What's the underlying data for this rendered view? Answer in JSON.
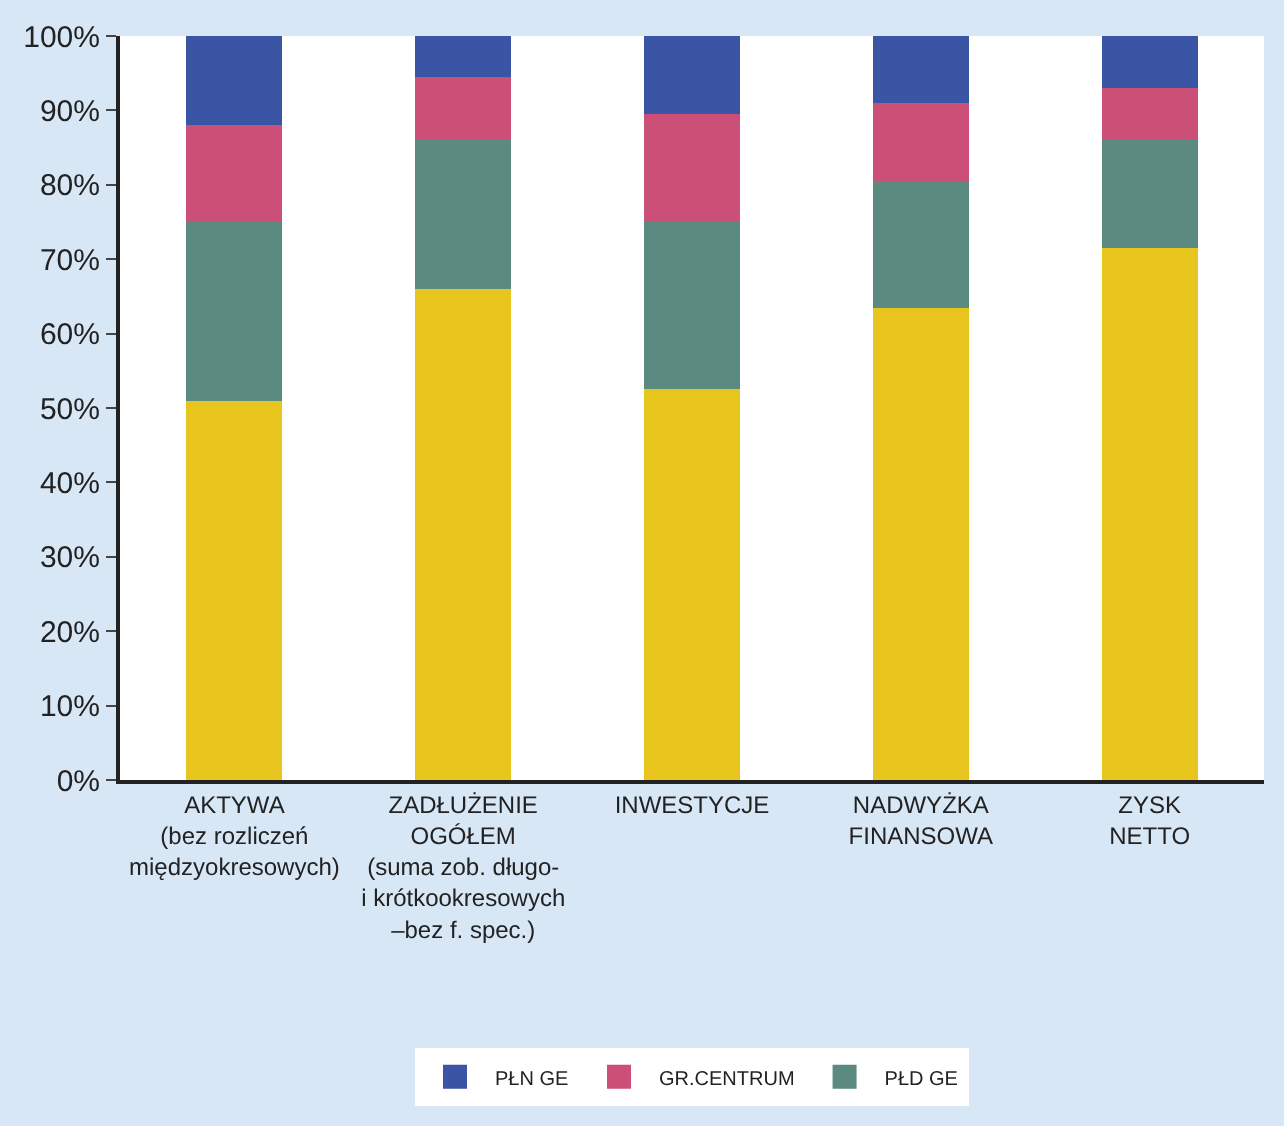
{
  "chart_data": {
    "type": "bar",
    "stacked": true,
    "categories": [
      "AKTYWA\n(bez rozliczeń\nmiędzyokresowych)",
      "ZADŁUŻENIE\nOGÓŁEM\n(suma zob. długo-\ni krótkookresowych\n–bez f. spec.)",
      "INWESTYCJE",
      "NADWYŻKA\nFINANSOWA",
      "ZYSK\nNETTO"
    ],
    "series": [
      {
        "color": "#e8c51c",
        "values": [
          51,
          66,
          52.5,
          63.5,
          71.5
        ]
      },
      {
        "name": "PŁD GE",
        "color": "#5a8a80",
        "values": [
          24,
          20,
          22.5,
          17,
          14.5
        ]
      },
      {
        "name": "GR.CENTRUM",
        "color": "#cc4f78",
        "values": [
          13,
          8.5,
          14.5,
          10.5,
          7
        ]
      },
      {
        "name": "PŁN GE",
        "color": "#3a55a4",
        "values": [
          12,
          5.5,
          10.5,
          9,
          7
        ]
      }
    ],
    "ylim": [
      0,
      100
    ],
    "yticks": [
      {
        "value": 0,
        "label": "0%"
      },
      {
        "value": 10,
        "label": "10%"
      },
      {
        "value": 20,
        "label": "20%"
      },
      {
        "value": 30,
        "label": "30%"
      },
      {
        "value": 40,
        "label": "40%"
      },
      {
        "value": 50,
        "label": "50%"
      },
      {
        "value": 60,
        "label": "60%"
      },
      {
        "value": 70,
        "label": "70%"
      },
      {
        "value": 80,
        "label": "80%"
      },
      {
        "value": 90,
        "label": "90%"
      },
      {
        "value": 100,
        "label": "100%"
      }
    ],
    "legend": "bottom"
  }
}
